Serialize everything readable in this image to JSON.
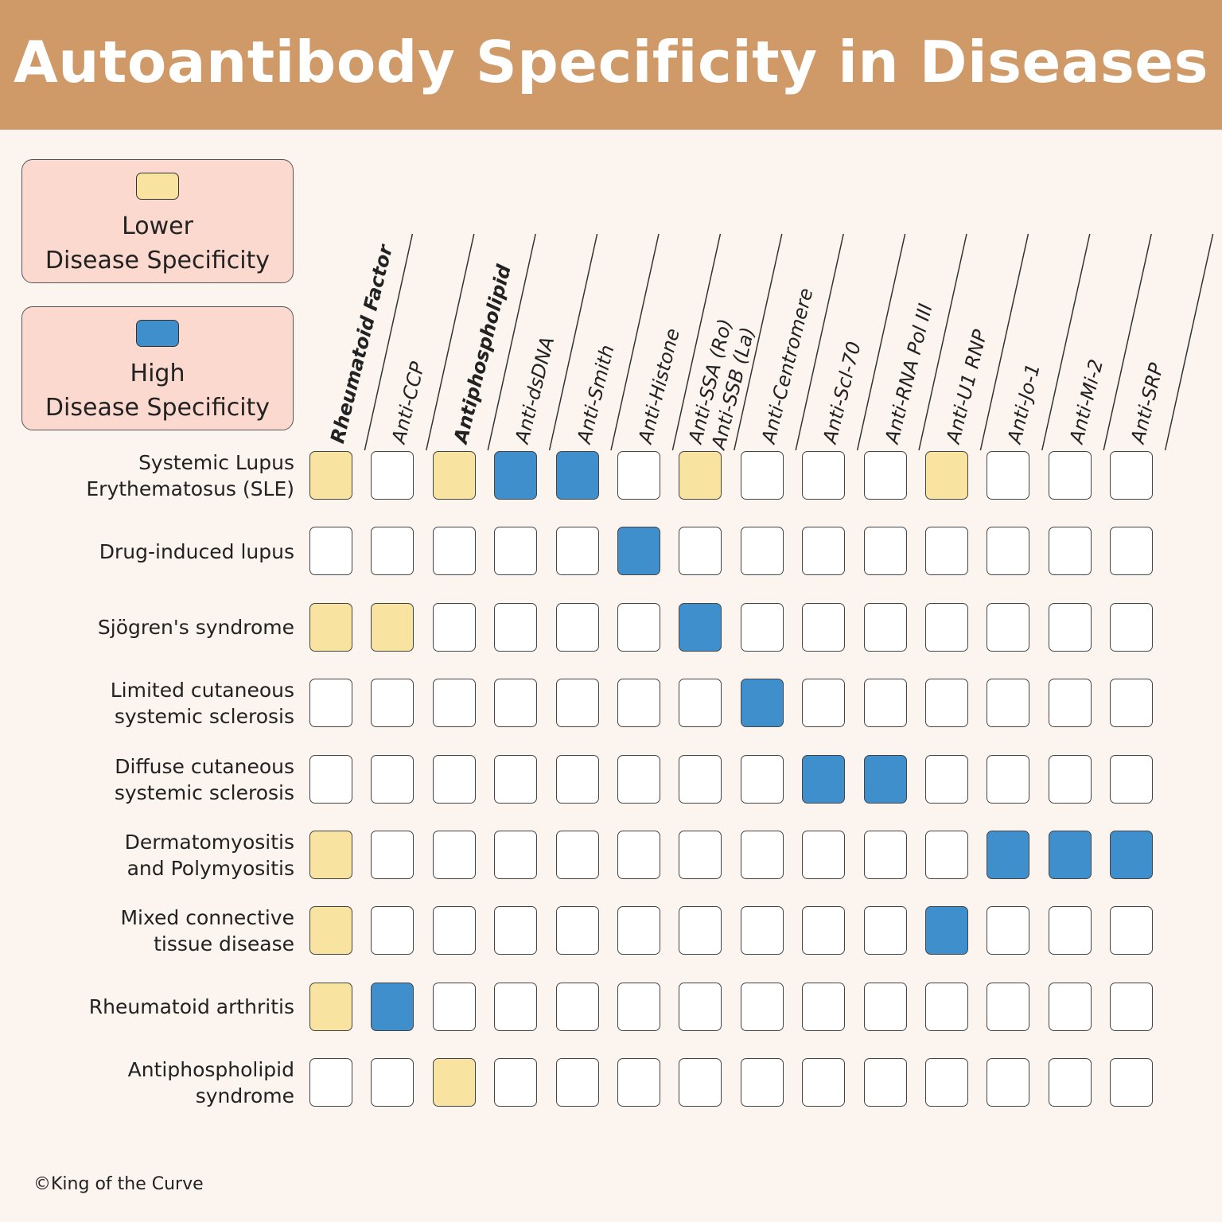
{
  "title": "Autoantibody Specificity in Diseases",
  "colors": {
    "header": "#cf9a68",
    "background": "#fcf4ee",
    "legend_box": "#fbd9cf",
    "low": "#f8e3a1",
    "high": "#3f8fcd",
    "none": "#ffffff"
  },
  "legend": [
    {
      "key": "low",
      "line1": "Lower",
      "line2": "Disease Specificity"
    },
    {
      "key": "high",
      "line1": "High",
      "line2": "Disease Specificity"
    }
  ],
  "columns": [
    [
      "Rheumatoid Factor"
    ],
    [
      "Anti-CCP"
    ],
    [
      "Antiphospholipid"
    ],
    [
      "Anti-dsDNA"
    ],
    [
      "Anti-Smith"
    ],
    [
      "Anti-Histone"
    ],
    [
      "Anti-SSA (Ro)",
      "Anti-SSB (La)"
    ],
    [
      "Anti-Centromere"
    ],
    [
      "Anti-Scl-70"
    ],
    [
      "Anti-RNA Pol III"
    ],
    [
      "Anti-U1 RNP"
    ],
    [
      "Anti-Jo-1"
    ],
    [
      "Anti-Mi-2"
    ],
    [
      "Anti-SRP"
    ]
  ],
  "rows": [
    {
      "label": [
        "Systemic Lupus",
        "Erythematosus (SLE)"
      ],
      "cells": [
        "low",
        "none",
        "low",
        "high",
        "high",
        "none",
        "low",
        "none",
        "none",
        "none",
        "low",
        "none",
        "none",
        "none"
      ]
    },
    {
      "label": [
        "Drug-induced lupus"
      ],
      "cells": [
        "none",
        "none",
        "none",
        "none",
        "none",
        "high",
        "none",
        "none",
        "none",
        "none",
        "none",
        "none",
        "none",
        "none"
      ]
    },
    {
      "label": [
        "Sjögren's syndrome"
      ],
      "cells": [
        "low",
        "low",
        "none",
        "none",
        "none",
        "none",
        "high",
        "none",
        "none",
        "none",
        "none",
        "none",
        "none",
        "none"
      ]
    },
    {
      "label": [
        "Limited cutaneous",
        "systemic sclerosis"
      ],
      "cells": [
        "none",
        "none",
        "none",
        "none",
        "none",
        "none",
        "none",
        "high",
        "none",
        "none",
        "none",
        "none",
        "none",
        "none"
      ]
    },
    {
      "label": [
        "Diffuse cutaneous",
        "systemic sclerosis"
      ],
      "cells": [
        "none",
        "none",
        "none",
        "none",
        "none",
        "none",
        "none",
        "none",
        "high",
        "high",
        "none",
        "none",
        "none",
        "none"
      ]
    },
    {
      "label": [
        "Dermatomyositis",
        "and Polymyositis"
      ],
      "cells": [
        "low",
        "none",
        "none",
        "none",
        "none",
        "none",
        "none",
        "none",
        "none",
        "none",
        "none",
        "high",
        "high",
        "high"
      ]
    },
    {
      "label": [
        "Mixed connective",
        "tissue disease"
      ],
      "cells": [
        "low",
        "none",
        "none",
        "none",
        "none",
        "none",
        "none",
        "none",
        "none",
        "none",
        "high",
        "none",
        "none",
        "none"
      ]
    },
    {
      "label": [
        "Rheumatoid arthritis"
      ],
      "cells": [
        "low",
        "high",
        "none",
        "none",
        "none",
        "none",
        "none",
        "none",
        "none",
        "none",
        "none",
        "none",
        "none",
        "none"
      ]
    },
    {
      "label": [
        "Antiphospholipid",
        "syndrome"
      ],
      "cells": [
        "none",
        "none",
        "low",
        "none",
        "none",
        "none",
        "none",
        "none",
        "none",
        "none",
        "none",
        "none",
        "none",
        "none"
      ]
    }
  ],
  "credit": "©King of the Curve"
}
